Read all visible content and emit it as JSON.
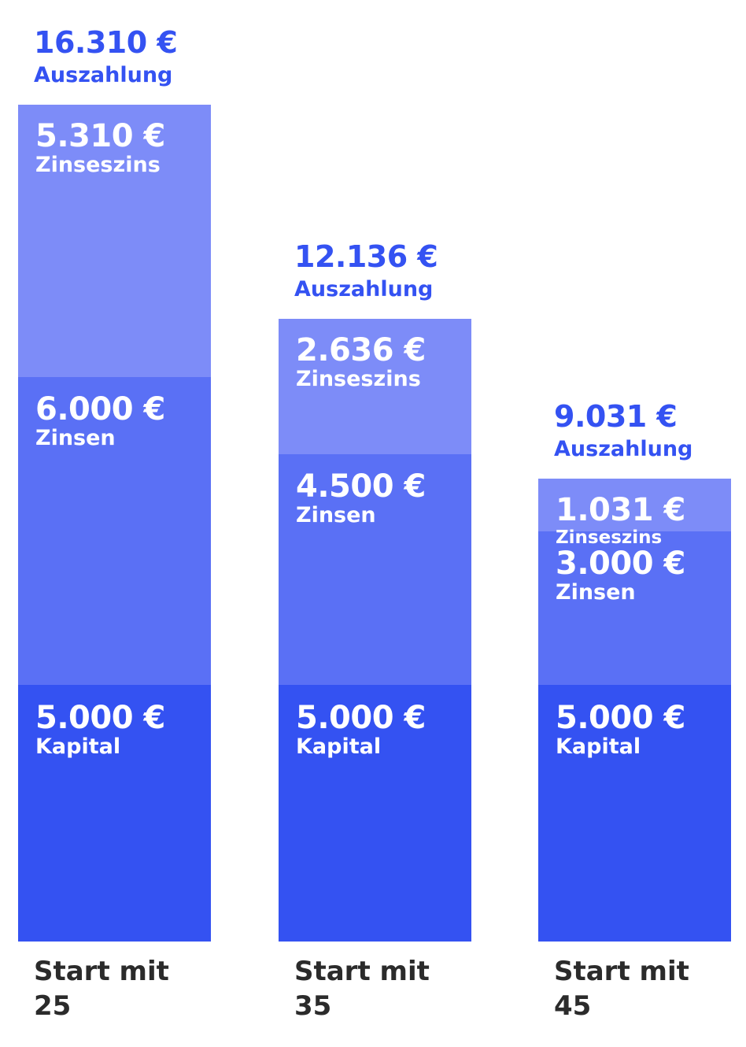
{
  "chart_data": {
    "type": "bar",
    "stacked": true,
    "categories": [
      "Start mit\n25",
      "Start mit\n35",
      "Start mit\n45"
    ],
    "series": [
      {
        "name": "Kapital",
        "values": [
          5000,
          5000,
          5000
        ],
        "labels": [
          "5.000 €",
          "5.000 €",
          "5.000 €"
        ]
      },
      {
        "name": "Zinsen",
        "values": [
          6000,
          4500,
          3000
        ],
        "labels": [
          "6.000 €",
          "4.500 €",
          "3.000 €"
        ]
      },
      {
        "name": "Zinseszins",
        "values": [
          5310,
          2636,
          1031
        ],
        "labels": [
          "5.310 €",
          "2.636 €",
          "1.031 €"
        ]
      }
    ],
    "totals": {
      "name": "Auszahlung",
      "values": [
        16310,
        12136,
        9031
      ],
      "labels": [
        "16.310 €",
        "12.136 €",
        "9.031 €"
      ]
    },
    "colors": {
      "Kapital": "#3452f2",
      "Zinsen": "#5a70f5",
      "Zinseszins": "#7d8cf8",
      "total_text": "#3452f2",
      "category_text": "#2b2b2b"
    },
    "title": "",
    "xlabel": "",
    "ylabel": "",
    "ylim": [
      0,
      16310
    ],
    "grid": false,
    "legend": "none"
  }
}
